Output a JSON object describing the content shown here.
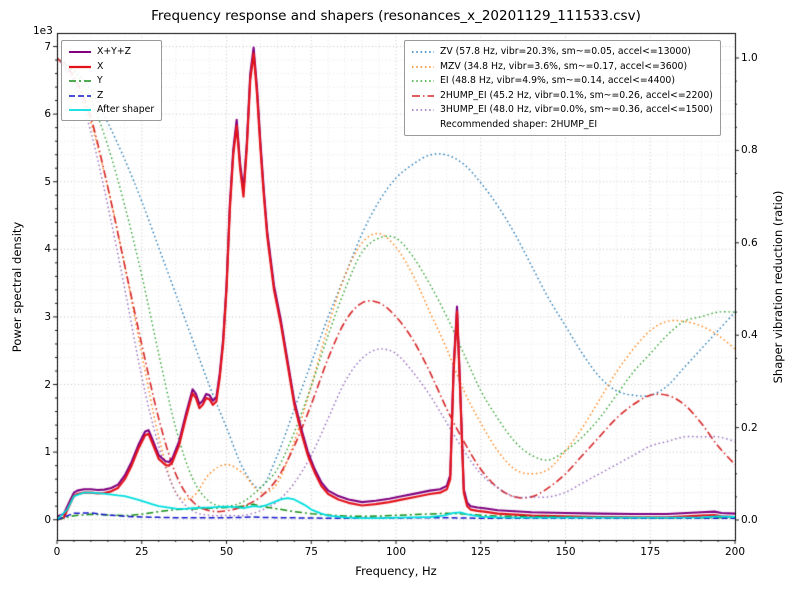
{
  "chart_data": {
    "type": "line",
    "title": "Frequency response and shapers (resonances_x_20201129_111533.csv)",
    "xlabel": "Frequency, Hz",
    "ylabel_left": "Power spectral density",
    "ylabel_right": "Shaper vibration reduction (ratio)",
    "offset_label": "1e3",
    "xlim": [
      0,
      200
    ],
    "left_lim": [
      -300,
      7200
    ],
    "right_lim": [
      -0.0433,
      1.0541
    ],
    "x_ticks": [
      0,
      25,
      50,
      75,
      100,
      125,
      150,
      175,
      200
    ],
    "left_ticks": [
      0,
      1,
      2,
      3,
      4,
      5,
      6,
      7
    ],
    "left_scale": 1000,
    "right_ticks": [
      0.0,
      0.2,
      0.4,
      0.6,
      0.8,
      1.0
    ],
    "grid": {
      "minor_x_step": 5,
      "minor_y_step": 200,
      "on": true
    },
    "shaper_x": [
      0,
      5,
      10,
      15,
      20,
      25,
      30,
      35,
      40,
      45,
      50,
      55,
      60,
      65,
      70,
      75,
      80,
      85,
      90,
      95,
      100,
      105,
      110,
      115,
      120,
      125,
      130,
      135,
      140,
      145,
      150,
      155,
      160,
      165,
      170,
      175,
      180,
      185,
      190,
      195,
      200
    ],
    "psd_x": [
      0,
      2,
      4,
      5,
      6,
      8,
      10,
      12,
      14,
      16,
      18,
      20,
      22,
      24,
      26,
      27,
      28,
      30,
      32,
      33,
      34,
      36,
      38,
      40,
      41,
      42,
      43,
      44,
      45,
      46,
      47,
      48,
      49,
      50,
      51,
      52,
      53,
      54,
      55,
      56,
      57,
      58,
      59,
      60,
      61,
      62,
      64,
      66,
      68,
      70,
      72,
      74,
      76,
      78,
      80,
      83,
      86,
      90,
      94,
      98,
      102,
      106,
      110,
      113,
      115,
      116,
      117,
      118,
      119,
      120,
      121,
      122,
      124,
      126,
      130,
      140,
      150,
      160,
      170,
      180,
      190,
      194,
      196,
      200
    ],
    "yz_x": [
      0,
      5,
      10,
      15,
      20,
      25,
      30,
      35,
      40,
      45,
      50,
      55,
      58,
      60,
      65,
      70,
      75,
      80,
      85,
      90,
      95,
      100,
      105,
      110,
      115,
      120,
      125,
      130,
      140,
      150,
      160,
      170,
      180,
      190,
      200
    ],
    "after_x": [
      0,
      3,
      5,
      8,
      10,
      13,
      15,
      18,
      20,
      23,
      25,
      28,
      30,
      33,
      35,
      38,
      40,
      43,
      45,
      48,
      50,
      53,
      55,
      58,
      60,
      62,
      64,
      66,
      68,
      70,
      73,
      75,
      78,
      80,
      85,
      90,
      95,
      100,
      105,
      110,
      114,
      117,
      119,
      121,
      125,
      130,
      140,
      150,
      160,
      170,
      180,
      190,
      195,
      200
    ],
    "series": [
      {
        "name": "ZV",
        "axis": "right",
        "color": "#1f77b4",
        "dash": [
          1.5,
          2.8
        ],
        "width": 1.4,
        "smooth": true,
        "x_ref": "shaper_x",
        "y": [
          1.0,
          0.975,
          0.93,
          0.86,
          0.78,
          0.69,
          0.59,
          0.49,
          0.39,
          0.29,
          0.2,
          0.11,
          0.07,
          0.14,
          0.24,
          0.34,
          0.44,
          0.53,
          0.62,
          0.69,
          0.74,
          0.77,
          0.79,
          0.79,
          0.77,
          0.73,
          0.68,
          0.62,
          0.55,
          0.48,
          0.42,
          0.36,
          0.31,
          0.28,
          0.27,
          0.27,
          0.29,
          0.33,
          0.37,
          0.41,
          0.45
        ]
      },
      {
        "name": "MZV",
        "axis": "right",
        "color": "#ff7f0e",
        "dash": [
          1.5,
          2.8
        ],
        "width": 1.4,
        "smooth": true,
        "x_ref": "shaper_x",
        "y": [
          1.0,
          0.95,
          0.86,
          0.72,
          0.55,
          0.36,
          0.18,
          0.06,
          0.05,
          0.1,
          0.12,
          0.1,
          0.06,
          0.08,
          0.17,
          0.29,
          0.42,
          0.53,
          0.6,
          0.62,
          0.59,
          0.53,
          0.45,
          0.37,
          0.28,
          0.21,
          0.15,
          0.11,
          0.1,
          0.11,
          0.15,
          0.2,
          0.26,
          0.32,
          0.37,
          0.41,
          0.43,
          0.43,
          0.42,
          0.4,
          0.37
        ]
      },
      {
        "name": "EI",
        "axis": "right",
        "color": "#2ca02c",
        "dash": [
          1.5,
          2.8
        ],
        "width": 1.4,
        "smooth": true,
        "x_ref": "shaper_x",
        "y": [
          1.0,
          0.97,
          0.91,
          0.81,
          0.68,
          0.53,
          0.36,
          0.2,
          0.09,
          0.04,
          0.03,
          0.04,
          0.07,
          0.11,
          0.19,
          0.29,
          0.4,
          0.5,
          0.58,
          0.61,
          0.61,
          0.57,
          0.51,
          0.44,
          0.36,
          0.28,
          0.22,
          0.17,
          0.14,
          0.13,
          0.15,
          0.18,
          0.22,
          0.27,
          0.32,
          0.36,
          0.4,
          0.43,
          0.44,
          0.45,
          0.45
        ]
      },
      {
        "name": "2HUMP_EI",
        "axis": "right",
        "color": "#d62728",
        "dash": [
          8,
          3,
          1.5,
          3
        ],
        "width": 1.6,
        "smooth": true,
        "x_ref": "shaper_x",
        "y": [
          1.0,
          0.96,
          0.87,
          0.72,
          0.55,
          0.38,
          0.22,
          0.1,
          0.04,
          0.02,
          0.02,
          0.03,
          0.05,
          0.09,
          0.16,
          0.25,
          0.35,
          0.43,
          0.47,
          0.47,
          0.44,
          0.39,
          0.32,
          0.24,
          0.17,
          0.11,
          0.07,
          0.05,
          0.05,
          0.07,
          0.1,
          0.14,
          0.18,
          0.22,
          0.25,
          0.27,
          0.27,
          0.25,
          0.21,
          0.16,
          0.12
        ]
      },
      {
        "name": "3HUMP_EI",
        "axis": "right",
        "color": "#9467bd",
        "dash": [
          1.5,
          2.8
        ],
        "width": 1.4,
        "smooth": true,
        "x_ref": "shaper_x",
        "y": [
          1.0,
          0.95,
          0.84,
          0.68,
          0.5,
          0.31,
          0.16,
          0.06,
          0.02,
          0.01,
          0.01,
          0.01,
          0.02,
          0.04,
          0.08,
          0.14,
          0.22,
          0.3,
          0.35,
          0.37,
          0.36,
          0.32,
          0.27,
          0.21,
          0.15,
          0.1,
          0.07,
          0.05,
          0.05,
          0.05,
          0.06,
          0.08,
          0.1,
          0.12,
          0.14,
          0.16,
          0.17,
          0.18,
          0.18,
          0.18,
          0.17
        ]
      },
      {
        "name": "X+Y+Z",
        "axis": "left",
        "color": "#800080",
        "dash": [],
        "width": 2.1,
        "smooth": false,
        "x_ref": "psd_x",
        "y": [
          45,
          85,
          300,
          400,
          430,
          450,
          450,
          440,
          445,
          470,
          520,
          655,
          855,
          1105,
          1305,
          1325,
          1205,
          955,
          865,
          855,
          905,
          1155,
          1560,
          1930,
          1860,
          1710,
          1760,
          1860,
          1840,
          1760,
          1810,
          2160,
          2665,
          3465,
          4675,
          5480,
          5915,
          5280,
          4860,
          5580,
          6590,
          6985,
          6390,
          5585,
          4875,
          4270,
          3465,
          2960,
          2355,
          1755,
          1355,
          1005,
          750,
          550,
          430,
          350,
          300,
          260,
          280,
          310,
          350,
          390,
          430,
          450,
          500,
          660,
          2270,
          3155,
          1860,
          450,
          250,
          200,
          180,
          170,
          140,
          110,
          100,
          90,
          85,
          85,
          110,
          120,
          100,
          90
        ]
      },
      {
        "name": "X",
        "axis": "left",
        "color": "#e3131c",
        "dash": [],
        "width": 2.2,
        "smooth": false,
        "x_ref": "psd_x",
        "y": [
          0,
          30,
          250,
          350,
          380,
          400,
          400,
          390,
          395,
          420,
          470,
          600,
          800,
          1050,
          1250,
          1270,
          1150,
          900,
          810,
          800,
          850,
          1100,
          1500,
          1870,
          1800,
          1650,
          1700,
          1800,
          1780,
          1700,
          1750,
          2100,
          2600,
          3400,
          4600,
          5400,
          5830,
          5200,
          4780,
          5500,
          6500,
          6900,
          6300,
          5500,
          4800,
          4200,
          3400,
          2900,
          2300,
          1700,
          1300,
          950,
          700,
          500,
          380,
          300,
          250,
          210,
          230,
          260,
          300,
          340,
          380,
          400,
          450,
          600,
          2200,
          3080,
          1800,
          400,
          200,
          150,
          130,
          120,
          90,
          60,
          50,
          40,
          35,
          35,
          60,
          70,
          50,
          40
        ]
      },
      {
        "name": "Y",
        "axis": "left",
        "color": "#188f18",
        "dash": [
          7,
          3,
          2,
          3
        ],
        "width": 1.5,
        "smooth": false,
        "x_ref": "yz_x",
        "y": [
          0,
          60,
          80,
          70,
          60,
          80,
          120,
          150,
          160,
          170,
          180,
          200,
          230,
          200,
          160,
          120,
          90,
          70,
          55,
          50,
          55,
          65,
          75,
          85,
          95,
          85,
          65,
          55,
          45,
          40,
          35,
          30,
          30,
          30,
          30
        ]
      },
      {
        "name": "Z",
        "axis": "left",
        "color": "#1515c8",
        "dash": [
          6,
          3
        ],
        "width": 1.5,
        "smooth": false,
        "x_ref": "yz_x",
        "y": [
          0,
          95,
          100,
          70,
          50,
          40,
          35,
          30,
          28,
          28,
          30,
          35,
          40,
          35,
          30,
          28,
          25,
          22,
          20,
          20,
          22,
          25,
          27,
          30,
          30,
          25,
          22,
          20,
          20,
          20,
          20,
          20,
          20,
          20,
          20
        ]
      },
      {
        "name": "After shaper",
        "axis": "left",
        "color": "#00dede",
        "dash": [],
        "width": 1.8,
        "smooth": false,
        "x_ref": "after_x",
        "y": [
          0,
          150,
          350,
          400,
          400,
          390,
          380,
          360,
          350,
          310,
          280,
          230,
          200,
          180,
          165,
          160,
          170,
          180,
          180,
          190,
          195,
          185,
          170,
          200,
          190,
          220,
          260,
          300,
          320,
          300,
          220,
          150,
          90,
          60,
          35,
          25,
          25,
          30,
          35,
          40,
          60,
          100,
          110,
          80,
          45,
          35,
          30,
          30,
          30,
          30,
          30,
          35,
          50,
          40
        ]
      }
    ],
    "legend_left": {
      "items": [
        {
          "label": "X+Y+Z",
          "color": "#800080",
          "dash": [],
          "width": 2
        },
        {
          "label": "X",
          "color": "#e3131c",
          "dash": [],
          "width": 2.2
        },
        {
          "label": "Y",
          "color": "#188f18",
          "dash": [
            7,
            3,
            2,
            3
          ],
          "width": 1.6
        },
        {
          "label": "Z",
          "color": "#1515c8",
          "dash": [
            6,
            3
          ],
          "width": 1.6
        },
        {
          "label": "After shaper",
          "color": "#00dede",
          "dash": [],
          "width": 1.8
        }
      ]
    },
    "legend_right": {
      "items": [
        {
          "label": "ZV (57.8 Hz, vibr=20.3%, sm~=0.05, accel<=13000)",
          "color": "#1f77b4",
          "dash": [
            1.5,
            2.8
          ],
          "width": 1.4
        },
        {
          "label": "MZV (34.8 Hz, vibr=3.6%, sm~=0.17, accel<=3600)",
          "color": "#ff7f0e",
          "dash": [
            1.5,
            2.8
          ],
          "width": 1.4
        },
        {
          "label": "EI (48.8 Hz, vibr=4.9%, sm~=0.14, accel<=4400)",
          "color": "#2ca02c",
          "dash": [
            1.5,
            2.8
          ],
          "width": 1.4
        },
        {
          "label": "2HUMP_EI (45.2 Hz, vibr=0.1%, sm~=0.26, accel<=2200)",
          "color": "#d62728",
          "dash": [
            8,
            3,
            1.5,
            3
          ],
          "width": 1.6
        },
        {
          "label": "3HUMP_EI (48.0 Hz, vibr=0.0%, sm~=0.36, accel<=1500)",
          "color": "#9467bd",
          "dash": [
            1.5,
            2.8
          ],
          "width": 1.4
        }
      ],
      "note": "Recommended shaper: 2HUMP_EI"
    }
  }
}
